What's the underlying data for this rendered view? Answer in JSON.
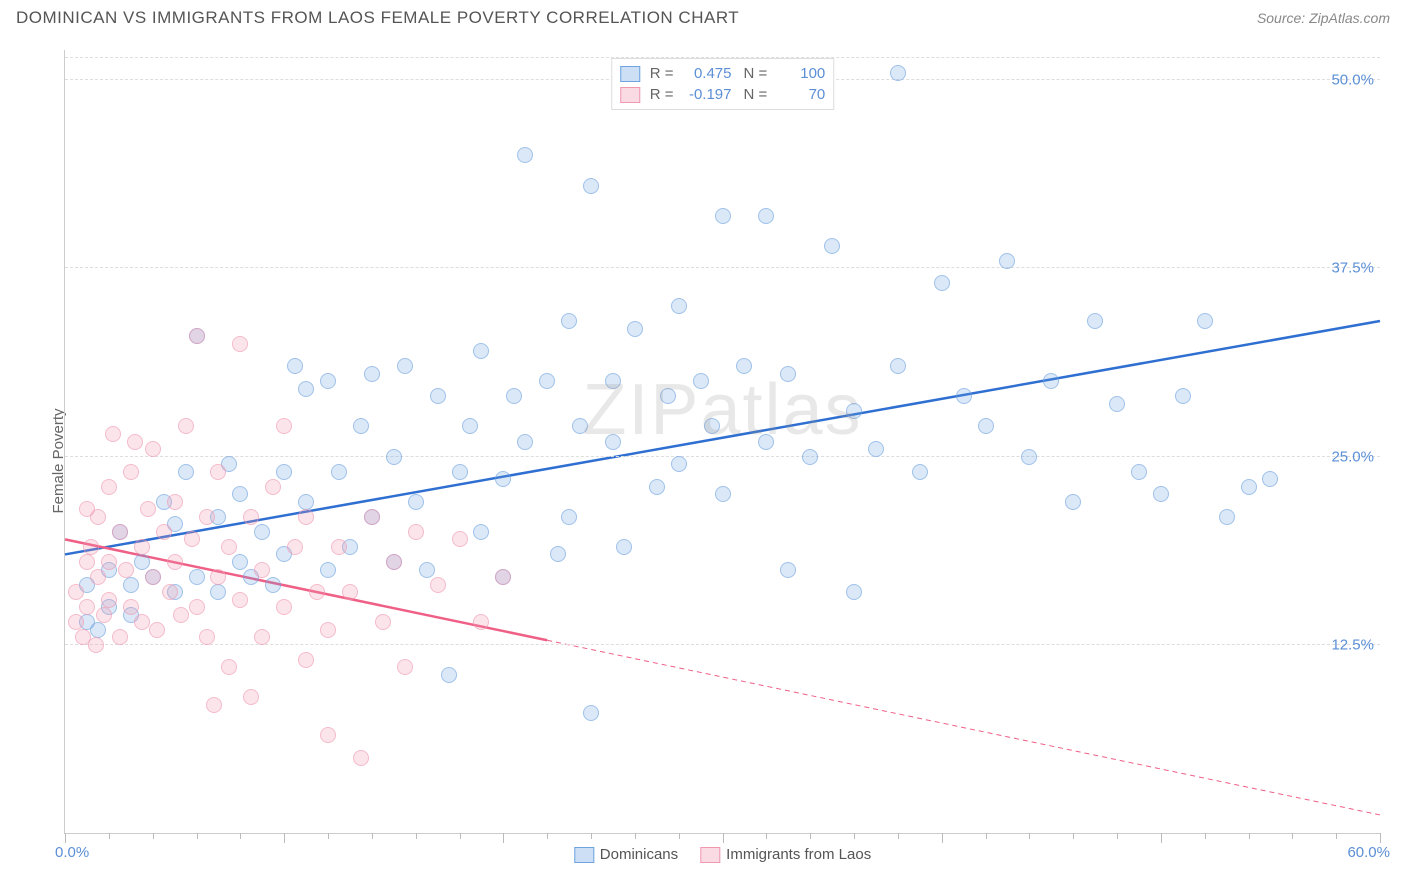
{
  "title": "DOMINICAN VS IMMIGRANTS FROM LAOS FEMALE POVERTY CORRELATION CHART",
  "source": "Source: ZipAtlas.com",
  "ylabel": "Female Poverty",
  "watermark": "ZIPatlas",
  "chart": {
    "type": "scatter",
    "xlim": [
      0,
      60
    ],
    "ylim": [
      0,
      52
    ],
    "xtick_step": 10,
    "xtick_minor_step": 2,
    "ytick_values": [
      12.5,
      25.0,
      37.5,
      50.0
    ],
    "ytick_labels": [
      "12.5%",
      "25.0%",
      "37.5%",
      "50.0%"
    ],
    "x_min_label": "0.0%",
    "x_max_label": "60.0%",
    "grid_color": "#dddddd",
    "axis_color": "#cccccc",
    "background_color": "#ffffff",
    "axis_label_color_blue": "#5b8fd6",
    "point_radius": 8,
    "point_border_alpha": 0.55,
    "point_fill_alpha": 0.25
  },
  "series": [
    {
      "name": "Dominicans",
      "color": "#6fa3e0",
      "line_color": "#2e6fd1",
      "line_width": 2.5,
      "R": "0.475",
      "N": "100",
      "trend": {
        "x1": 0,
        "y1": 18.5,
        "x2": 60,
        "y2": 34.0,
        "dash": false
      },
      "points": [
        [
          1,
          14
        ],
        [
          1,
          16.5
        ],
        [
          1.5,
          13.5
        ],
        [
          2,
          17.5
        ],
        [
          2,
          15
        ],
        [
          2.5,
          20
        ],
        [
          3,
          16.5
        ],
        [
          3,
          14.5
        ],
        [
          3.5,
          18
        ],
        [
          4,
          17
        ],
        [
          4.5,
          22
        ],
        [
          5,
          20.5
        ],
        [
          5,
          16
        ],
        [
          5.5,
          24
        ],
        [
          6,
          17
        ],
        [
          6,
          33
        ],
        [
          7,
          21
        ],
        [
          7,
          16
        ],
        [
          7.5,
          24.5
        ],
        [
          8,
          18
        ],
        [
          8,
          22.5
        ],
        [
          8.5,
          17
        ],
        [
          9,
          20
        ],
        [
          9.5,
          16.5
        ],
        [
          10,
          24
        ],
        [
          10,
          18.5
        ],
        [
          10.5,
          31
        ],
        [
          11,
          29.5
        ],
        [
          11,
          22
        ],
        [
          12,
          17.5
        ],
        [
          12,
          30
        ],
        [
          12.5,
          24
        ],
        [
          13,
          19
        ],
        [
          13.5,
          27
        ],
        [
          14,
          30.5
        ],
        [
          14,
          21
        ],
        [
          15,
          25
        ],
        [
          15,
          18
        ],
        [
          15.5,
          31
        ],
        [
          16,
          22
        ],
        [
          16.5,
          17.5
        ],
        [
          17,
          29
        ],
        [
          17.5,
          10.5
        ],
        [
          18,
          24
        ],
        [
          18.5,
          27
        ],
        [
          19,
          20
        ],
        [
          19,
          32
        ],
        [
          20,
          23.5
        ],
        [
          20,
          17
        ],
        [
          20.5,
          29
        ],
        [
          21,
          45
        ],
        [
          21,
          26
        ],
        [
          22,
          30
        ],
        [
          22.5,
          18.5
        ],
        [
          23,
          34
        ],
        [
          23,
          21
        ],
        [
          23.5,
          27
        ],
        [
          24,
          43
        ],
        [
          24,
          8
        ],
        [
          25,
          26
        ],
        [
          25,
          30
        ],
        [
          25.5,
          19
        ],
        [
          26,
          33.5
        ],
        [
          27,
          23
        ],
        [
          27.5,
          29
        ],
        [
          28,
          35
        ],
        [
          28,
          24.5
        ],
        [
          29,
          30
        ],
        [
          29.5,
          27
        ],
        [
          30,
          22.5
        ],
        [
          30,
          41
        ],
        [
          31,
          31
        ],
        [
          32,
          41
        ],
        [
          32,
          26
        ],
        [
          33,
          17.5
        ],
        [
          33,
          30.5
        ],
        [
          34,
          25
        ],
        [
          35,
          39
        ],
        [
          36,
          16
        ],
        [
          36,
          28
        ],
        [
          37,
          25.5
        ],
        [
          38,
          31
        ],
        [
          38,
          50.5
        ],
        [
          39,
          24
        ],
        [
          40,
          36.5
        ],
        [
          41,
          29
        ],
        [
          42,
          27
        ],
        [
          43,
          38
        ],
        [
          44,
          25
        ],
        [
          45,
          30
        ],
        [
          46,
          22
        ],
        [
          47,
          34
        ],
        [
          48,
          28.5
        ],
        [
          49,
          24
        ],
        [
          50,
          22.5
        ],
        [
          51,
          29
        ],
        [
          52,
          34
        ],
        [
          53,
          21
        ],
        [
          54,
          23
        ],
        [
          55,
          23.5
        ]
      ]
    },
    {
      "name": "Immigrants from Laos",
      "color": "#f098b0",
      "line_color": "#ef5f86",
      "line_width": 2.5,
      "R": "-0.197",
      "N": "70",
      "trend_solid": {
        "x1": 0,
        "y1": 19.5,
        "x2": 22,
        "y2": 12.8
      },
      "trend_dash": {
        "x1": 22,
        "y1": 12.8,
        "x2": 60,
        "y2": 1.2
      },
      "points": [
        [
          0.5,
          14
        ],
        [
          0.5,
          16
        ],
        [
          0.8,
          13
        ],
        [
          1,
          18
        ],
        [
          1,
          21.5
        ],
        [
          1,
          15
        ],
        [
          1.2,
          19
        ],
        [
          1.4,
          12.5
        ],
        [
          1.5,
          17
        ],
        [
          1.5,
          21
        ],
        [
          1.8,
          14.5
        ],
        [
          2,
          23
        ],
        [
          2,
          18
        ],
        [
          2,
          15.5
        ],
        [
          2.2,
          26.5
        ],
        [
          2.5,
          20
        ],
        [
          2.5,
          13
        ],
        [
          2.8,
          17.5
        ],
        [
          3,
          24
        ],
        [
          3,
          15
        ],
        [
          3.2,
          26
        ],
        [
          3.5,
          19
        ],
        [
          3.5,
          14
        ],
        [
          3.8,
          21.5
        ],
        [
          4,
          17
        ],
        [
          4,
          25.5
        ],
        [
          4.2,
          13.5
        ],
        [
          4.5,
          20
        ],
        [
          4.8,
          16
        ],
        [
          5,
          22
        ],
        [
          5,
          18
        ],
        [
          5.3,
          14.5
        ],
        [
          5.5,
          27
        ],
        [
          5.8,
          19.5
        ],
        [
          6,
          15
        ],
        [
          6,
          33
        ],
        [
          6.5,
          21
        ],
        [
          6.5,
          13
        ],
        [
          6.8,
          8.5
        ],
        [
          7,
          17
        ],
        [
          7,
          24
        ],
        [
          7.5,
          11
        ],
        [
          7.5,
          19
        ],
        [
          8,
          15.5
        ],
        [
          8,
          32.5
        ],
        [
          8.5,
          21
        ],
        [
          8.5,
          9
        ],
        [
          9,
          17.5
        ],
        [
          9,
          13
        ],
        [
          9.5,
          23
        ],
        [
          10,
          15
        ],
        [
          10,
          27
        ],
        [
          10.5,
          19
        ],
        [
          11,
          11.5
        ],
        [
          11,
          21
        ],
        [
          11.5,
          16
        ],
        [
          12,
          13.5
        ],
        [
          12,
          6.5
        ],
        [
          12.5,
          19
        ],
        [
          13,
          16
        ],
        [
          13.5,
          5
        ],
        [
          14,
          21
        ],
        [
          14.5,
          14
        ],
        [
          15,
          18
        ],
        [
          15.5,
          11
        ],
        [
          16,
          20
        ],
        [
          17,
          16.5
        ],
        [
          18,
          19.5
        ],
        [
          19,
          14
        ],
        [
          20,
          17
        ]
      ]
    }
  ],
  "legend_top": [
    {
      "swatch": 0,
      "r_label": "R =",
      "r_value": "0.475",
      "n_label": "N =",
      "n_value": "100"
    },
    {
      "swatch": 1,
      "r_label": "R =",
      "r_value": "-0.197",
      "n_label": "N =",
      "n_value": "70"
    }
  ],
  "legend_bottom": [
    {
      "swatch": 0,
      "label": "Dominicans"
    },
    {
      "swatch": 1,
      "label": "Immigrants from Laos"
    }
  ]
}
